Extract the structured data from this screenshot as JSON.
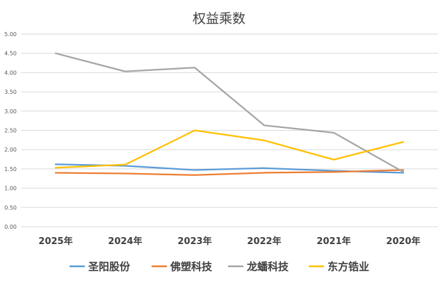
{
  "chart_data": {
    "type": "line",
    "title": "权益乘数",
    "xlabel": "",
    "ylabel": "",
    "categories": [
      "2025年",
      "2024年",
      "2023年",
      "2022年",
      "2021年",
      "2020年"
    ],
    "ylim": [
      0,
      5
    ],
    "yticks": [
      "0.00",
      "0.50",
      "1.00",
      "1.50",
      "2.00",
      "2.50",
      "3.00",
      "3.50",
      "4.00",
      "4.50",
      "5.00"
    ],
    "grid": true,
    "legend": "bottom",
    "series": [
      {
        "name": "圣阳股份",
        "color": "#5B9BD5",
        "values": [
          1.62,
          1.58,
          1.47,
          1.52,
          1.45,
          1.4
        ]
      },
      {
        "name": "佛塑科技",
        "color": "#ED7D31",
        "values": [
          1.4,
          1.38,
          1.34,
          1.4,
          1.42,
          1.47
        ]
      },
      {
        "name": "龙蟠科技",
        "color": "#A5A5A5",
        "values": [
          4.5,
          4.03,
          4.13,
          2.63,
          2.44,
          1.42
        ]
      },
      {
        "name": "东方锆业",
        "color": "#FFC000",
        "values": [
          1.53,
          1.61,
          2.5,
          2.24,
          1.74,
          2.2
        ]
      }
    ]
  }
}
